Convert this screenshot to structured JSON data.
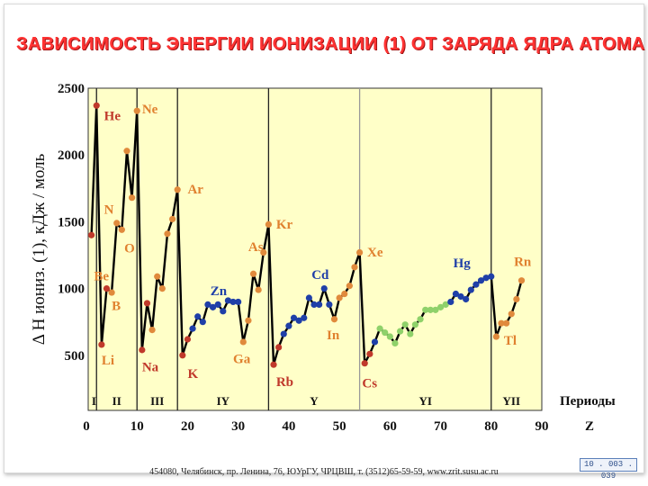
{
  "title": "ЗАВИСИМОСТЬ ЭНЕРГИИ ИОНИЗАЦИИ (1) ОТ ЗАРЯДА ЯДРА АТОМА",
  "footer": "454080, Челябинск, пр. Ленина, 76, ЮУрГУ, ЧРЦВШ, т. (3512)65-59-59, www.zrit.susu.ac.ru",
  "slide_code": "10 . 003 . 039",
  "colors": {
    "plot_bg": "#ffffc8",
    "line": "#000000",
    "title": "#ff3333",
    "period_1_3": "#c0392b",
    "period_1_3_alt": "#e08a3c",
    "transition": "#1f3fa8",
    "period_4_5_tail": "#e08a3c",
    "lanthanides": "#8fd16a",
    "label_orange": "#e0812f",
    "label_red": "#c0392b",
    "label_blue": "#1f3fa8"
  },
  "chart_data": {
    "type": "line",
    "xlabel": "Z",
    "ylabel": "Δ H иониз. (1),  кДж / моль",
    "xlim": [
      0,
      90
    ],
    "ylim": [
      0,
      2500
    ],
    "x_ticks": [
      0,
      10,
      20,
      30,
      40,
      50,
      60,
      70,
      80,
      90
    ],
    "y_ticks": [
      500,
      1000,
      1500,
      2000,
      2500
    ],
    "grid": false,
    "period_axis_label": "Периоды",
    "period_boundaries": [
      2,
      10,
      18,
      36,
      54,
      80
    ],
    "period_labels": [
      {
        "label": "I",
        "x": 1.5
      },
      {
        "label": "II",
        "x": 6
      },
      {
        "label": "III",
        "x": 14
      },
      {
        "label": "IY",
        "x": 27
      },
      {
        "label": "Y",
        "x": 45
      },
      {
        "label": "YI",
        "x": 67
      },
      {
        "label": "YII",
        "x": 84
      }
    ],
    "points": [
      [
        1,
        1400,
        "red"
      ],
      [
        2,
        2370,
        "red"
      ],
      [
        3,
        580,
        "red"
      ],
      [
        4,
        1000,
        "red"
      ],
      [
        5,
        970,
        "orange"
      ],
      [
        6,
        1490,
        "orange"
      ],
      [
        7,
        1440,
        "orange"
      ],
      [
        8,
        2030,
        "orange"
      ],
      [
        9,
        1680,
        "orange"
      ],
      [
        10,
        2330,
        "orange"
      ],
      [
        11,
        540,
        "red"
      ],
      [
        12,
        890,
        "red"
      ],
      [
        13,
        690,
        "orange"
      ],
      [
        14,
        1090,
        "orange"
      ],
      [
        15,
        1000,
        "orange"
      ],
      [
        16,
        1410,
        "orange"
      ],
      [
        17,
        1520,
        "orange"
      ],
      [
        18,
        1740,
        "orange"
      ],
      [
        19,
        500,
        "red"
      ],
      [
        20,
        620,
        "red"
      ],
      [
        21,
        700,
        "blue"
      ],
      [
        22,
        790,
        "blue"
      ],
      [
        23,
        750,
        "blue"
      ],
      [
        24,
        880,
        "blue"
      ],
      [
        25,
        860,
        "blue"
      ],
      [
        26,
        880,
        "blue"
      ],
      [
        27,
        830,
        "blue"
      ],
      [
        28,
        910,
        "blue"
      ],
      [
        29,
        900,
        "blue"
      ],
      [
        30,
        900,
        "blue"
      ],
      [
        31,
        600,
        "orange"
      ],
      [
        32,
        760,
        "orange"
      ],
      [
        33,
        1110,
        "orange"
      ],
      [
        34,
        990,
        "orange"
      ],
      [
        35,
        1270,
        "orange"
      ],
      [
        36,
        1480,
        "orange"
      ],
      [
        37,
        430,
        "red"
      ],
      [
        38,
        560,
        "red"
      ],
      [
        39,
        660,
        "blue"
      ],
      [
        40,
        720,
        "blue"
      ],
      [
        41,
        780,
        "blue"
      ],
      [
        42,
        760,
        "blue"
      ],
      [
        43,
        780,
        "blue"
      ],
      [
        44,
        930,
        "blue"
      ],
      [
        45,
        880,
        "blue"
      ],
      [
        46,
        880,
        "blue"
      ],
      [
        47,
        1000,
        "blue"
      ],
      [
        48,
        880,
        "blue"
      ],
      [
        49,
        770,
        "orange"
      ],
      [
        50,
        930,
        "orange"
      ],
      [
        51,
        960,
        "orange"
      ],
      [
        52,
        1020,
        "orange"
      ],
      [
        53,
        1160,
        "orange"
      ],
      [
        54,
        1270,
        "orange"
      ],
      [
        55,
        440,
        "red"
      ],
      [
        56,
        510,
        "red"
      ],
      [
        57,
        600,
        "blue"
      ],
      [
        58,
        700,
        "green"
      ],
      [
        59,
        670,
        "green"
      ],
      [
        60,
        640,
        "green"
      ],
      [
        61,
        590,
        "green"
      ],
      [
        62,
        680,
        "green"
      ],
      [
        63,
        730,
        "green"
      ],
      [
        64,
        660,
        "green"
      ],
      [
        65,
        730,
        "green"
      ],
      [
        66,
        770,
        "green"
      ],
      [
        67,
        840,
        "green"
      ],
      [
        68,
        840,
        "green"
      ],
      [
        69,
        840,
        "green"
      ],
      [
        70,
        860,
        "green"
      ],
      [
        71,
        880,
        "green"
      ],
      [
        72,
        900,
        "blue"
      ],
      [
        73,
        960,
        "blue"
      ],
      [
        74,
        940,
        "blue"
      ],
      [
        75,
        920,
        "blue"
      ],
      [
        76,
        990,
        "blue"
      ],
      [
        77,
        1030,
        "blue"
      ],
      [
        78,
        1060,
        "blue"
      ],
      [
        79,
        1080,
        "blue"
      ],
      [
        80,
        1090,
        "blue"
      ],
      [
        81,
        640,
        "orange"
      ],
      [
        82,
        740,
        "orange"
      ],
      [
        83,
        740,
        "orange"
      ],
      [
        84,
        810,
        "orange"
      ],
      [
        85,
        920,
        "orange"
      ],
      [
        86,
        1060,
        "orange"
      ]
    ],
    "element_labels": [
      {
        "label": "He",
        "x": 3.5,
        "y": 2260,
        "color": "red"
      },
      {
        "label": "Ne",
        "x": 11,
        "y": 2310,
        "color": "orange"
      },
      {
        "label": "Ar",
        "x": 20,
        "y": 1710,
        "color": "orange"
      },
      {
        "label": "Kr",
        "x": 37.5,
        "y": 1450,
        "color": "orange"
      },
      {
        "label": "Xe",
        "x": 55.5,
        "y": 1240,
        "color": "orange"
      },
      {
        "label": "Rn",
        "x": 84.5,
        "y": 1170,
        "color": "orange"
      },
      {
        "label": "N",
        "x": 3.5,
        "y": 1560,
        "color": "orange"
      },
      {
        "label": "O",
        "x": 7.5,
        "y": 1270,
        "color": "orange"
      },
      {
        "label": "Be",
        "x": 1.5,
        "y": 1060,
        "color": "orange"
      },
      {
        "label": "B",
        "x": 5,
        "y": 840,
        "color": "orange"
      },
      {
        "label": "Li",
        "x": 3,
        "y": 430,
        "color": "orange"
      },
      {
        "label": "Na",
        "x": 11,
        "y": 380,
        "color": "red"
      },
      {
        "label": "K",
        "x": 20,
        "y": 330,
        "color": "red"
      },
      {
        "label": "Rb",
        "x": 37.5,
        "y": 270,
        "color": "red"
      },
      {
        "label": "Cs",
        "x": 54.5,
        "y": 260,
        "color": "red"
      },
      {
        "label": "Zn",
        "x": 24.5,
        "y": 950,
        "color": "blue"
      },
      {
        "label": "Cd",
        "x": 44.5,
        "y": 1070,
        "color": "blue"
      },
      {
        "label": "Hg",
        "x": 72.5,
        "y": 1160,
        "color": "blue"
      },
      {
        "label": "As",
        "x": 32,
        "y": 1280,
        "color": "orange"
      },
      {
        "label": "Ga",
        "x": 29,
        "y": 440,
        "color": "orange"
      },
      {
        "label": "In",
        "x": 47.5,
        "y": 620,
        "color": "orange"
      },
      {
        "label": "Tl",
        "x": 82.5,
        "y": 580,
        "color": "orange"
      }
    ]
  }
}
